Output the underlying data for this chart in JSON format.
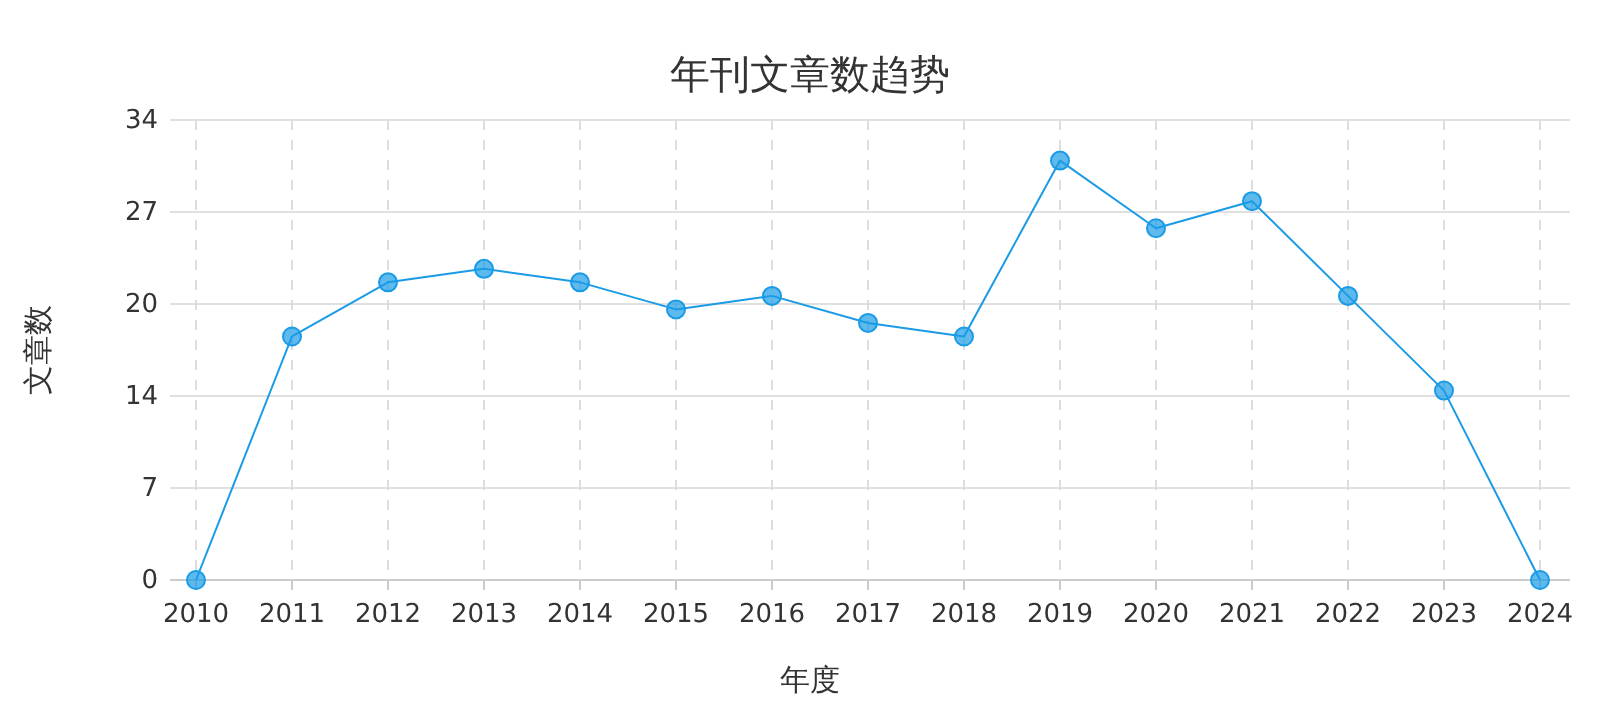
{
  "chart_data": {
    "type": "line",
    "title": "年刊文章数趋势",
    "xlabel": "年度",
    "ylabel": "文章数",
    "categories": [
      "2010",
      "2011",
      "2012",
      "2013",
      "2014",
      "2015",
      "2016",
      "2017",
      "2018",
      "2019",
      "2020",
      "2021",
      "2022",
      "2023",
      "2024"
    ],
    "series": [
      {
        "color": "#1a9be6",
        "values": [
          0,
          18,
          22,
          23,
          22,
          20,
          21,
          19,
          18,
          31,
          26,
          28,
          21,
          14,
          0
        ]
      }
    ],
    "ylim": [
      0,
      34
    ],
    "yticks": [
      0,
      {
        "value": 6.8,
        "label": "7"
      },
      {
        "value": 13.6,
        "label": "14"
      },
      {
        "value": 20.4,
        "label": "20"
      },
      {
        "value": 27.2,
        "label": "27"
      },
      34
    ],
    "grid": true,
    "marker": "circle",
    "line_style": "solid"
  }
}
